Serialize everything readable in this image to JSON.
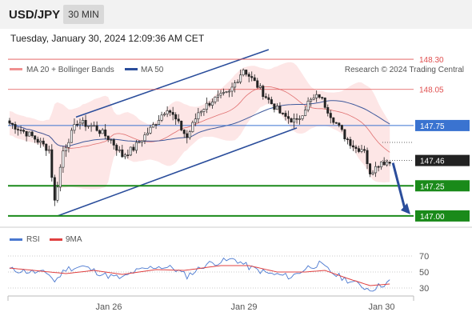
{
  "header": {
    "pair": "USD/JPY",
    "timeframe": "30 MIN"
  },
  "datetime": "Tuesday, January 30, 2024 12:09:36 AM CET",
  "legend": {
    "ma20": "MA 20 + Bollinger Bands",
    "ma50": "MA 50",
    "credit": "Research © 2024 Trading Central"
  },
  "rsi_legend": {
    "rsi": "RSI",
    "ma": "9MA"
  },
  "colors": {
    "up": "#ffffff",
    "down": "#222222",
    "resistance": "#e05050",
    "support": "#1a8a1a",
    "channel": "#2a4d9b",
    "blue_line": "#3a73d0",
    "target": "#1a8a1a",
    "current": "#222222",
    "bb_fill": "#fde6e6",
    "ma20": "#e07070",
    "ma50": "#405a9c",
    "rsi": "#4a78d0",
    "rsi_ma": "#e04040"
  },
  "chart_data": {
    "type": "candlestick",
    "symbol": "USD/JPY",
    "timeframe": "30 MIN",
    "x_ticks": [
      "Jan 26",
      "Jan 29",
      "Jan 30"
    ],
    "y_range": [
      146.88,
      148.38
    ],
    "levels": [
      {
        "label": "148.30",
        "value": 148.3,
        "kind": "resistance"
      },
      {
        "label": "148.05",
        "value": 148.05,
        "kind": "resistance"
      },
      {
        "label": "147.75",
        "value": 147.75,
        "kind": "pivot"
      },
      {
        "label": "147.46",
        "value": 147.46,
        "kind": "current"
      },
      {
        "label": "147.25",
        "value": 147.25,
        "kind": "support"
      },
      {
        "label": "147.00",
        "value": 147.0,
        "kind": "support"
      }
    ],
    "seed": 7,
    "ohlc_waypoints": [
      [
        0,
        147.77
      ],
      [
        8,
        147.66
      ],
      [
        14,
        147.55
      ],
      [
        16,
        147.12
      ],
      [
        19,
        147.54
      ],
      [
        24,
        147.78
      ],
      [
        30,
        147.74
      ],
      [
        36,
        147.63
      ],
      [
        40,
        147.5
      ],
      [
        44,
        147.56
      ],
      [
        50,
        147.72
      ],
      [
        56,
        147.9
      ],
      [
        60,
        147.76
      ],
      [
        63,
        147.65
      ],
      [
        67,
        147.86
      ],
      [
        72,
        147.96
      ],
      [
        78,
        148.02
      ],
      [
        83,
        148.22
      ],
      [
        88,
        148.08
      ],
      [
        92,
        147.96
      ],
      [
        97,
        147.83
      ],
      [
        102,
        147.78
      ],
      [
        106,
        147.94
      ],
      [
        110,
        148.0
      ],
      [
        114,
        147.84
      ],
      [
        119,
        147.66
      ],
      [
        123,
        147.56
      ],
      [
        126,
        147.56
      ],
      [
        128,
        147.33
      ],
      [
        130,
        147.43
      ],
      [
        135,
        147.46
      ]
    ],
    "rsi": {
      "y_ticks": [
        70,
        50,
        30
      ],
      "y_range": [
        22,
        78
      ],
      "rsi_waypoints": [
        [
          0,
          53
        ],
        [
          14,
          48
        ],
        [
          16,
          38
        ],
        [
          20,
          54
        ],
        [
          26,
          57
        ],
        [
          34,
          46
        ],
        [
          40,
          42
        ],
        [
          44,
          50
        ],
        [
          52,
          57
        ],
        [
          58,
          55
        ],
        [
          63,
          45
        ],
        [
          70,
          60
        ],
        [
          80,
          66
        ],
        [
          85,
          56
        ],
        [
          92,
          48
        ],
        [
          100,
          44
        ],
        [
          106,
          56
        ],
        [
          110,
          60
        ],
        [
          116,
          46
        ],
        [
          122,
          37
        ],
        [
          128,
          28
        ],
        [
          135,
          38
        ]
      ],
      "ma_waypoints": [
        [
          0,
          55
        ],
        [
          20,
          48
        ],
        [
          30,
          52
        ],
        [
          40,
          47
        ],
        [
          52,
          53
        ],
        [
          62,
          52
        ],
        [
          75,
          58
        ],
        [
          85,
          58
        ],
        [
          95,
          50
        ],
        [
          105,
          50
        ],
        [
          112,
          52
        ],
        [
          120,
          42
        ],
        [
          128,
          33
        ],
        [
          135,
          35
        ]
      ]
    }
  }
}
